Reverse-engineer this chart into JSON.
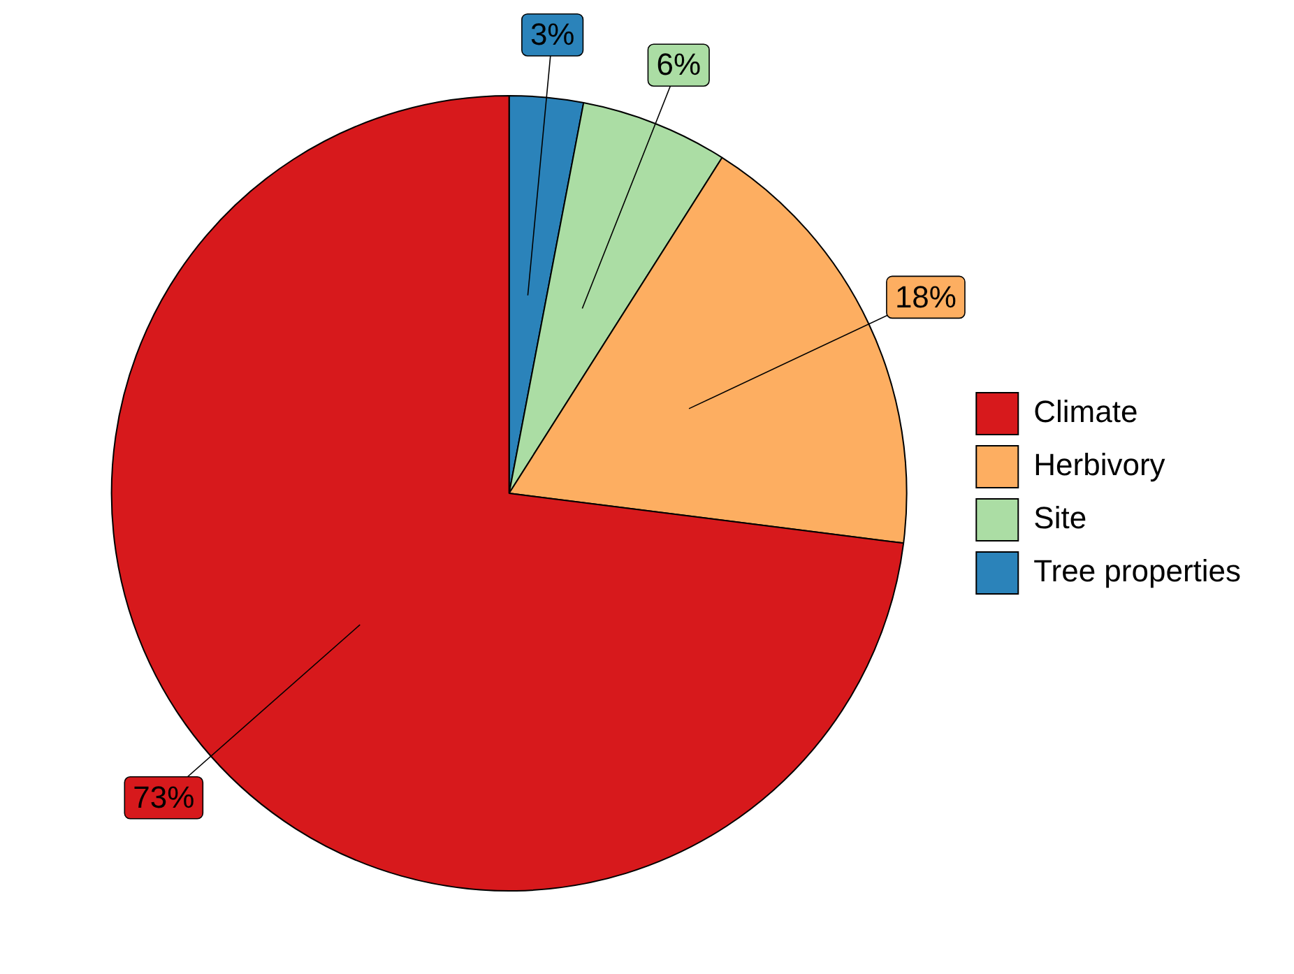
{
  "chart_data": {
    "type": "pie",
    "categories": [
      "Tree properties",
      "Site",
      "Herbivory",
      "Climate"
    ],
    "values": [
      3,
      6,
      18,
      73
    ],
    "colors": [
      "#2b83ba",
      "#abdda4",
      "#fdae61",
      "#d7191c"
    ],
    "value_labels": [
      "3%",
      "6%",
      "18%",
      "73%"
    ],
    "legend": "right"
  }
}
